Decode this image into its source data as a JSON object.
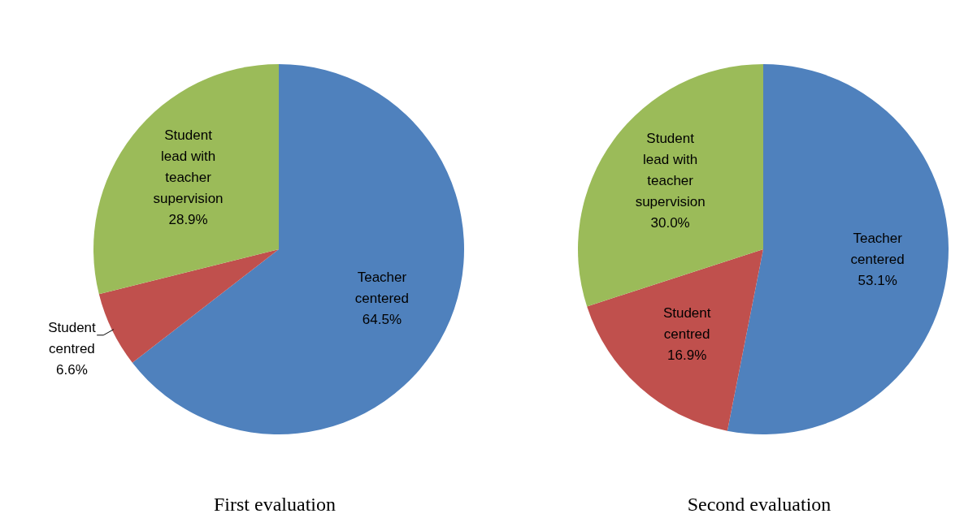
{
  "chart_data": [
    {
      "type": "pie",
      "title": "First evaluation",
      "categories": [
        "Teacher centered",
        "Student centred",
        "Student lead with teacher supervision"
      ],
      "values": [
        64.5,
        6.6,
        28.9
      ],
      "value_labels": [
        "64.5%",
        "6.6%",
        "28.9%"
      ],
      "colors": [
        "#4f81bd",
        "#c0504d",
        "#9bbb59"
      ],
      "legend": false
    },
    {
      "type": "pie",
      "title": "Second evaluation",
      "categories": [
        "Teacher centered",
        "Student centred",
        "Student lead with teacher supervision"
      ],
      "values": [
        53.1,
        16.9,
        30.0
      ],
      "value_labels": [
        "53.1%",
        "16.9%",
        "30.0%"
      ],
      "colors": [
        "#4f81bd",
        "#c0504d",
        "#9bbb59"
      ],
      "legend": false
    }
  ]
}
